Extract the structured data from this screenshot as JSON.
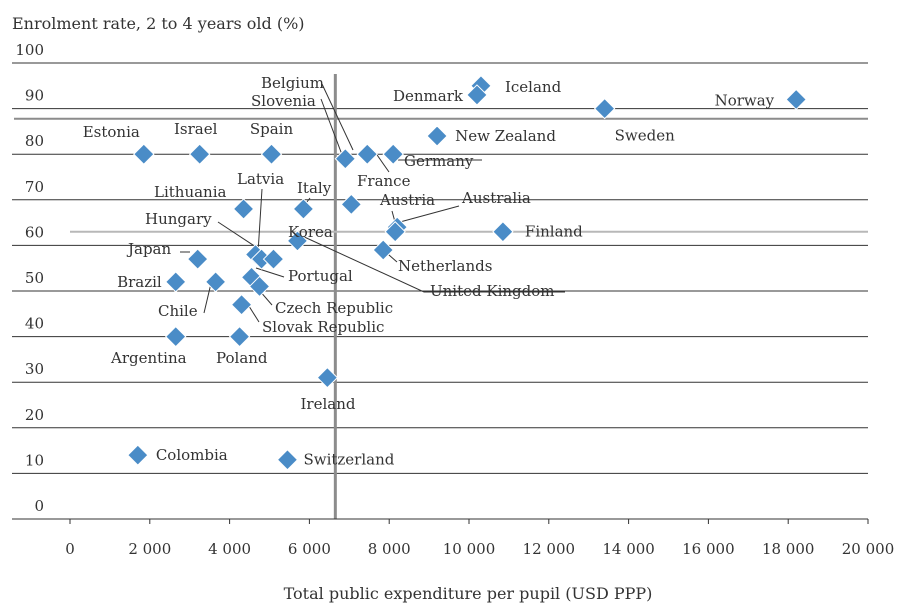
{
  "chart_data": {
    "type": "scatter",
    "ylabel": "Enrolment rate, 2 to 4 years old (%)",
    "xlabel": "Total public expenditure per pupil (USD PPP)",
    "xlim": [
      0,
      20000
    ],
    "ylim": [
      0,
      100
    ],
    "x_ticks": [
      0,
      2000,
      4000,
      6000,
      8000,
      10000,
      12000,
      14000,
      16000,
      18000,
      20000
    ],
    "x_tick_labels": [
      "0",
      "2 000",
      "4 000",
      "6 000",
      "8 000",
      "10 000",
      "12 000",
      "14 000",
      "16 000",
      "18 000",
      "20 000"
    ],
    "y_ticks": [
      0,
      10,
      20,
      30,
      40,
      50,
      60,
      70,
      80,
      90,
      100
    ],
    "y_tick_labels": [
      "0",
      "10",
      "20",
      "30",
      "40",
      "50",
      "60",
      "70",
      "80",
      "90",
      "100"
    ],
    "grid": "horizontal",
    "reference_lines": {
      "vertical_x": 6650,
      "horizontal_y": 88,
      "horizontal_y2": 63
    },
    "marker_color": "#4a8cc7",
    "points": [
      {
        "name": "Iceland",
        "x": 10300,
        "y": 95
      },
      {
        "name": "Denmark",
        "x": 10200,
        "y": 93
      },
      {
        "name": "Norway",
        "x": 18200,
        "y": 92
      },
      {
        "name": "Sweden",
        "x": 13400,
        "y": 90
      },
      {
        "name": "New Zealand",
        "x": 9200,
        "y": 84
      },
      {
        "name": "Estonia",
        "x": 1850,
        "y": 80
      },
      {
        "name": "Israel",
        "x": 3250,
        "y": 80
      },
      {
        "name": "Spain",
        "x": 5050,
        "y": 80
      },
      {
        "name": "Belgium",
        "x": 7450,
        "y": 80
      },
      {
        "name": "Slovenia",
        "x": 6900,
        "y": 79
      },
      {
        "name": "Germany",
        "x": 8100,
        "y": 80
      },
      {
        "name": "France",
        "x": 7050,
        "y": 69
      },
      {
        "name": "Italy",
        "x": 5850,
        "y": 68
      },
      {
        "name": "Lithuania",
        "x": 4350,
        "y": 68
      },
      {
        "name": "Austria",
        "x": 8200,
        "y": 64
      },
      {
        "name": "Australia",
        "x": 8150,
        "y": 63
      },
      {
        "name": "Finland",
        "x": 10850,
        "y": 63
      },
      {
        "name": "Netherlands",
        "x": 7850,
        "y": 59
      },
      {
        "name": "United Kingdom",
        "x": 5700,
        "y": 61
      },
      {
        "name": "Hungary",
        "x": 4650,
        "y": 58
      },
      {
        "name": "Latvia",
        "x": 4800,
        "y": 57
      },
      {
        "name": "Korea",
        "x": 5100,
        "y": 57
      },
      {
        "name": "Japan",
        "x": 3200,
        "y": 57
      },
      {
        "name": "Portugal",
        "x": 4550,
        "y": 53
      },
      {
        "name": "Brazil",
        "x": 2650,
        "y": 52
      },
      {
        "name": "Chile",
        "x": 3650,
        "y": 52
      },
      {
        "name": "Czech Republic",
        "x": 4750,
        "y": 51
      },
      {
        "name": "Slovak Republic",
        "x": 4300,
        "y": 47
      },
      {
        "name": "Argentina",
        "x": 2650,
        "y": 40
      },
      {
        "name": "Poland",
        "x": 4250,
        "y": 40
      },
      {
        "name": "Ireland",
        "x": 6450,
        "y": 31
      },
      {
        "name": "Colombia",
        "x": 1700,
        "y": 14
      },
      {
        "name": "Switzerland",
        "x": 5450,
        "y": 13
      }
    ]
  }
}
